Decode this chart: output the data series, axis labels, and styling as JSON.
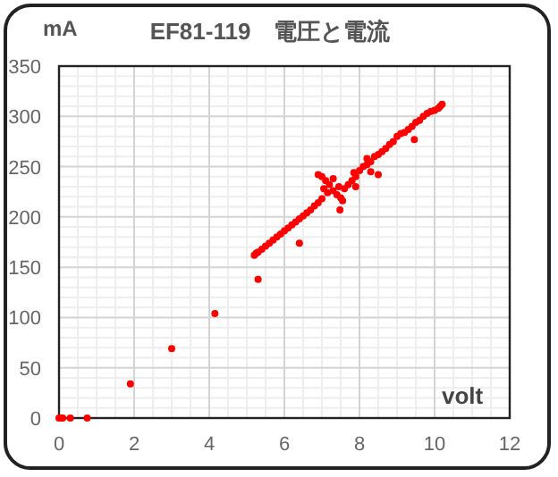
{
  "chart_data": {
    "type": "scatter",
    "title": "EF81-119　電圧と電流",
    "ylabel": "mA",
    "xlabel": "volt",
    "xlim": [
      0,
      12
    ],
    "xticks": [
      0,
      2,
      4,
      6,
      8,
      10,
      12
    ],
    "ylim": [
      0,
      350
    ],
    "yticks": [
      0,
      50,
      100,
      150,
      200,
      250,
      300,
      350
    ],
    "grid": true,
    "marker": "circle",
    "series": [
      {
        "color": "#ff0000",
        "x": [
          0,
          0.05,
          0.1,
          0.3,
          0.75,
          1.9,
          3.0,
          4.15,
          5.3,
          6.4,
          5.2,
          5.25,
          5.3,
          5.4,
          5.5,
          5.6,
          5.7,
          5.8,
          5.9,
          6.0,
          6.1,
          6.2,
          6.3,
          6.4,
          6.5,
          6.6,
          6.7,
          6.8,
          6.9,
          7.0,
          6.9,
          7.0,
          7.1,
          7.2,
          7.05,
          7.15,
          7.3,
          7.4,
          7.5,
          7.45,
          7.6,
          7.55,
          7.3,
          7.7,
          7.8,
          7.9,
          7.85,
          8.0,
          8.1,
          8.2,
          8.3,
          8.2,
          8.4,
          8.5,
          8.6,
          8.7,
          8.8,
          8.9,
          9.0,
          9.1,
          9.2,
          9.3,
          9.4,
          9.5,
          9.6,
          9.7,
          9.8,
          9.9,
          10.0,
          10.1,
          10.2,
          10.15,
          7.48,
          8.5,
          9.46,
          8.3,
          7.9
        ],
        "values": [
          0,
          0,
          0,
          0,
          0,
          34,
          69,
          104,
          138,
          174,
          162,
          164,
          165,
          168,
          171,
          174,
          177,
          180,
          183,
          186,
          189,
          192,
          195,
          198,
          201,
          204,
          207,
          211,
          214,
          218,
          242,
          240,
          236,
          232,
          228,
          224,
          226,
          222,
          219,
          230,
          228,
          216,
          238,
          232,
          236,
          240,
          244,
          246,
          250,
          252,
          255,
          258,
          260,
          262,
          265,
          268,
          272,
          275,
          280,
          283,
          284,
          287,
          290,
          294,
          296,
          300,
          303,
          305,
          306,
          308,
          312,
          310,
          207,
          242,
          277,
          245,
          230
        ]
      }
    ]
  }
}
